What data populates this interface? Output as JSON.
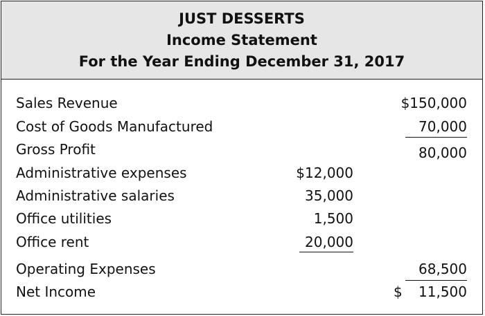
{
  "header": {
    "company": "JUST DESSERTS",
    "statement": "Income Statement",
    "period": "For the Year Ending December 31, 2017"
  },
  "rows": [
    {
      "label": "Sales Revenue",
      "mid": "",
      "right": "$150,000"
    },
    {
      "label": "Cost of Goods Manufactured",
      "mid": "",
      "right": "70,000"
    },
    {
      "label": "Gross Profit",
      "mid": "",
      "right": "80,000"
    },
    {
      "label": "Administrative expenses",
      "mid": "$12,000",
      "right": ""
    },
    {
      "label": "Administrative salaries",
      "mid": "35,000",
      "right": ""
    },
    {
      "label": "Office utilities",
      "mid": "1,500",
      "right": ""
    },
    {
      "label": "Office rent",
      "mid": "20,000",
      "right": ""
    },
    {
      "label": "Operating Expenses",
      "mid": "",
      "right": "68,500"
    },
    {
      "label": "Net Income",
      "mid": "",
      "right_currency": "$",
      "right": "11,500"
    }
  ]
}
